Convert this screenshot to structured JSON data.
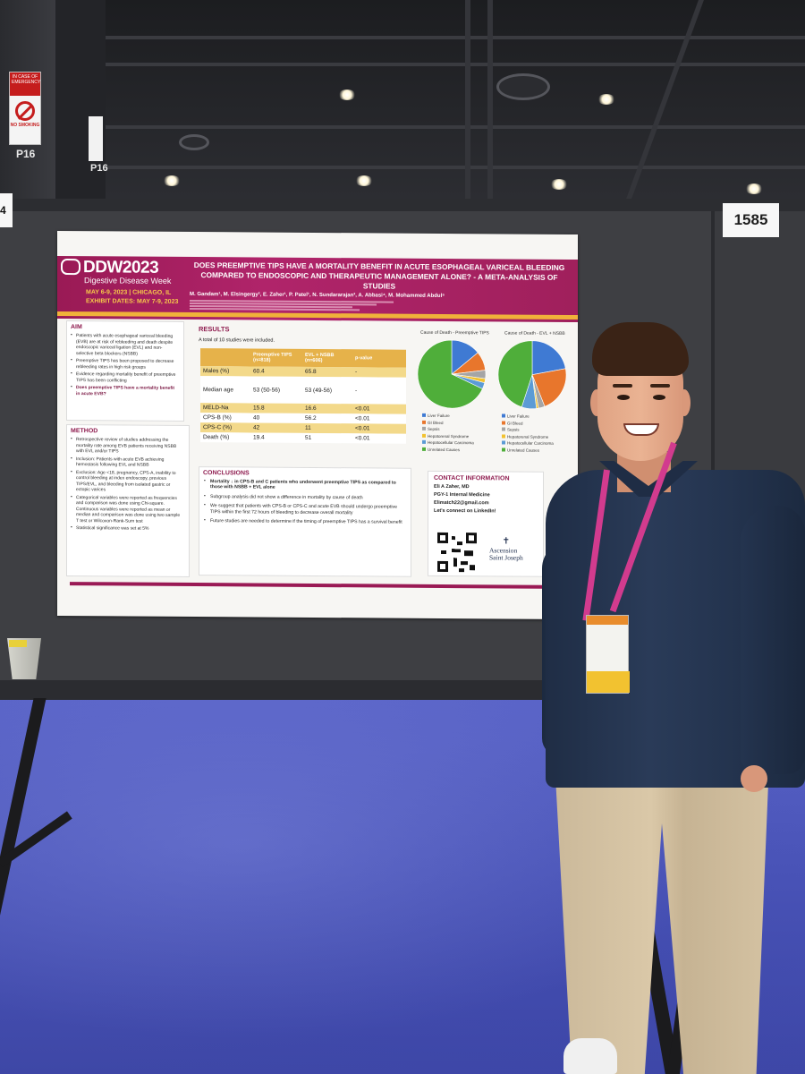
{
  "venue": {
    "aisle_sign": "P16",
    "aisle_sign_2": "P16",
    "emergency_sign_text": "IN CASE OF EMERGENCY",
    "no_smoking_text": "NO SMOKING",
    "board_number": "1585",
    "left_board_tag": "4"
  },
  "poster": {
    "logo": "DDW2023",
    "logo_sub": "Digestive Disease Week",
    "dates_line_1": "MAY 6-9, 2023 | CHICAGO, IL",
    "dates_line_2": "EXHIBIT DATES: MAY 7-9, 2023",
    "title": "DOES PREEMPTIVE TIPS HAVE A MORTALITY BENEFIT IN ACUTE ESOPHAGEAL VARICEAL BLEEDING COMPARED TO ENDOSCOPIC AND THERAPEUTIC MANAGEMENT ALONE? - A META-ANALYSIS OF STUDIES",
    "authors": "M. Gandam¹, M. Elsingergy², E. Zaher¹, P. Patel¹, N. Sundararajan³, A. Abbasi⁴, M. Mohammed Abdul⁵",
    "aim": {
      "title": "AIM",
      "bullets": [
        "Patients with acute esophageal variceal bleeding (EVB) are at risk of rebleeding and death despite endoscopic variceal ligation (EVL) and non-selective beta blockers (NSBB)",
        "Preemptive TIPS has been proposed to decrease rebleeding rates in high risk groups",
        "Evidence regarding mortality benefit of preemptive TIPS has been conflicting"
      ],
      "question": "Does preemptive TIPS have a mortality benefit in acute EVB?"
    },
    "method": {
      "title": "METHOD",
      "bullets": [
        "Retrospective review of studies addressing the mortality rate among EVB patients receiving NSBB with EVL and/or TIPS",
        "Inclusion: Patients with acute EVB achieving hemostasis following EVL and NSBB",
        "Exclusion: Age <18, pregnancy, CPS-A, inability to control bleeding at index endoscopy, previous TIPS/EVL, and bleeding from isolated gastric or ectopic varices",
        "Categorical variables were reported as frequencies and comparison was done using Chi-square. Continuous variables were reported as mean or median and comparison was done using two sample T test or Wilcoxon-Rank-Sum test",
        "Statistical significance was set at 5%"
      ]
    },
    "results": {
      "title": "RESULTS",
      "note": "A total of 10 studies were included.",
      "headers": [
        "",
        "Preemptive TIPS (n=818)",
        "EVL + NSBB (n=606)",
        "p-value"
      ],
      "rows": [
        {
          "label": "Males (%)",
          "tips": "60.4",
          "evl": "65.8",
          "p": "-"
        },
        {
          "label": "Median age",
          "tips": "53 (50-56)",
          "evl": "53 (49-56)",
          "p": "-"
        },
        {
          "label": "MELD-Na",
          "tips": "15.8",
          "evl": "16.6",
          "p": "<0.01"
        },
        {
          "label": "CPS-B (%)",
          "tips": "40",
          "evl": "56.2",
          "p": "<0.01"
        },
        {
          "label": "CPS-C (%)",
          "tips": "42",
          "evl": "11",
          "p": "<0.01"
        },
        {
          "label": "Death (%)",
          "tips": "19.4",
          "evl": "51",
          "p": "<0.01"
        }
      ]
    },
    "pies": {
      "left_caption": "Cause of Death - Preemptive TIPS",
      "right_caption": "Cause of Death - EVL + NSBB",
      "legend": [
        {
          "label": "Liver Failure",
          "color": "#3f7ad3"
        },
        {
          "label": "GI Bleed",
          "color": "#e8762c"
        },
        {
          "label": "Sepsis",
          "color": "#a5a5a5"
        },
        {
          "label": "Hepatorenal Syndrome",
          "color": "#f2c230"
        },
        {
          "label": "Hepatocellular Carcinoma",
          "color": "#5b9bd5"
        },
        {
          "label": "Unrelated Causes",
          "color": "#4fae3a"
        }
      ],
      "left_values": [
        14,
        9,
        4,
        2,
        3,
        68
      ],
      "right_values": [
        22,
        22,
        3,
        1,
        7,
        45
      ]
    },
    "conclusions": {
      "title": "CONCLUSIONS",
      "bullets": [
        "Mortality ↓ in CPS-B and C patients who underwent preemptive TIPS as compared to those with NSBB + EVL alone",
        "Subgroup analysis did not show a difference in mortality by cause of death",
        "We suggest that patients with CPS-B or CPS-C and acute EVB should undergo preemptive TIPS within the first 72 hours of bleeding to decrease overall mortality",
        "Future studies are needed to determine if the timing of preemptive TIPS has a survival benefit"
      ]
    },
    "contact": {
      "title": "CONTACT INFORMATION",
      "name": "Eli A Zaher, MD",
      "role": "PGY-1 Internal Medicine",
      "email": "Elimatch22@gmail.com",
      "cta": "Let's connect on LinkedIn!",
      "org_line_1": "Ascension",
      "org_line_2": "Saint Joseph"
    },
    "colors": {
      "header": "#a0205c",
      "accent_gold": "#e6b24a",
      "section_title": "#8e1b4e"
    }
  }
}
